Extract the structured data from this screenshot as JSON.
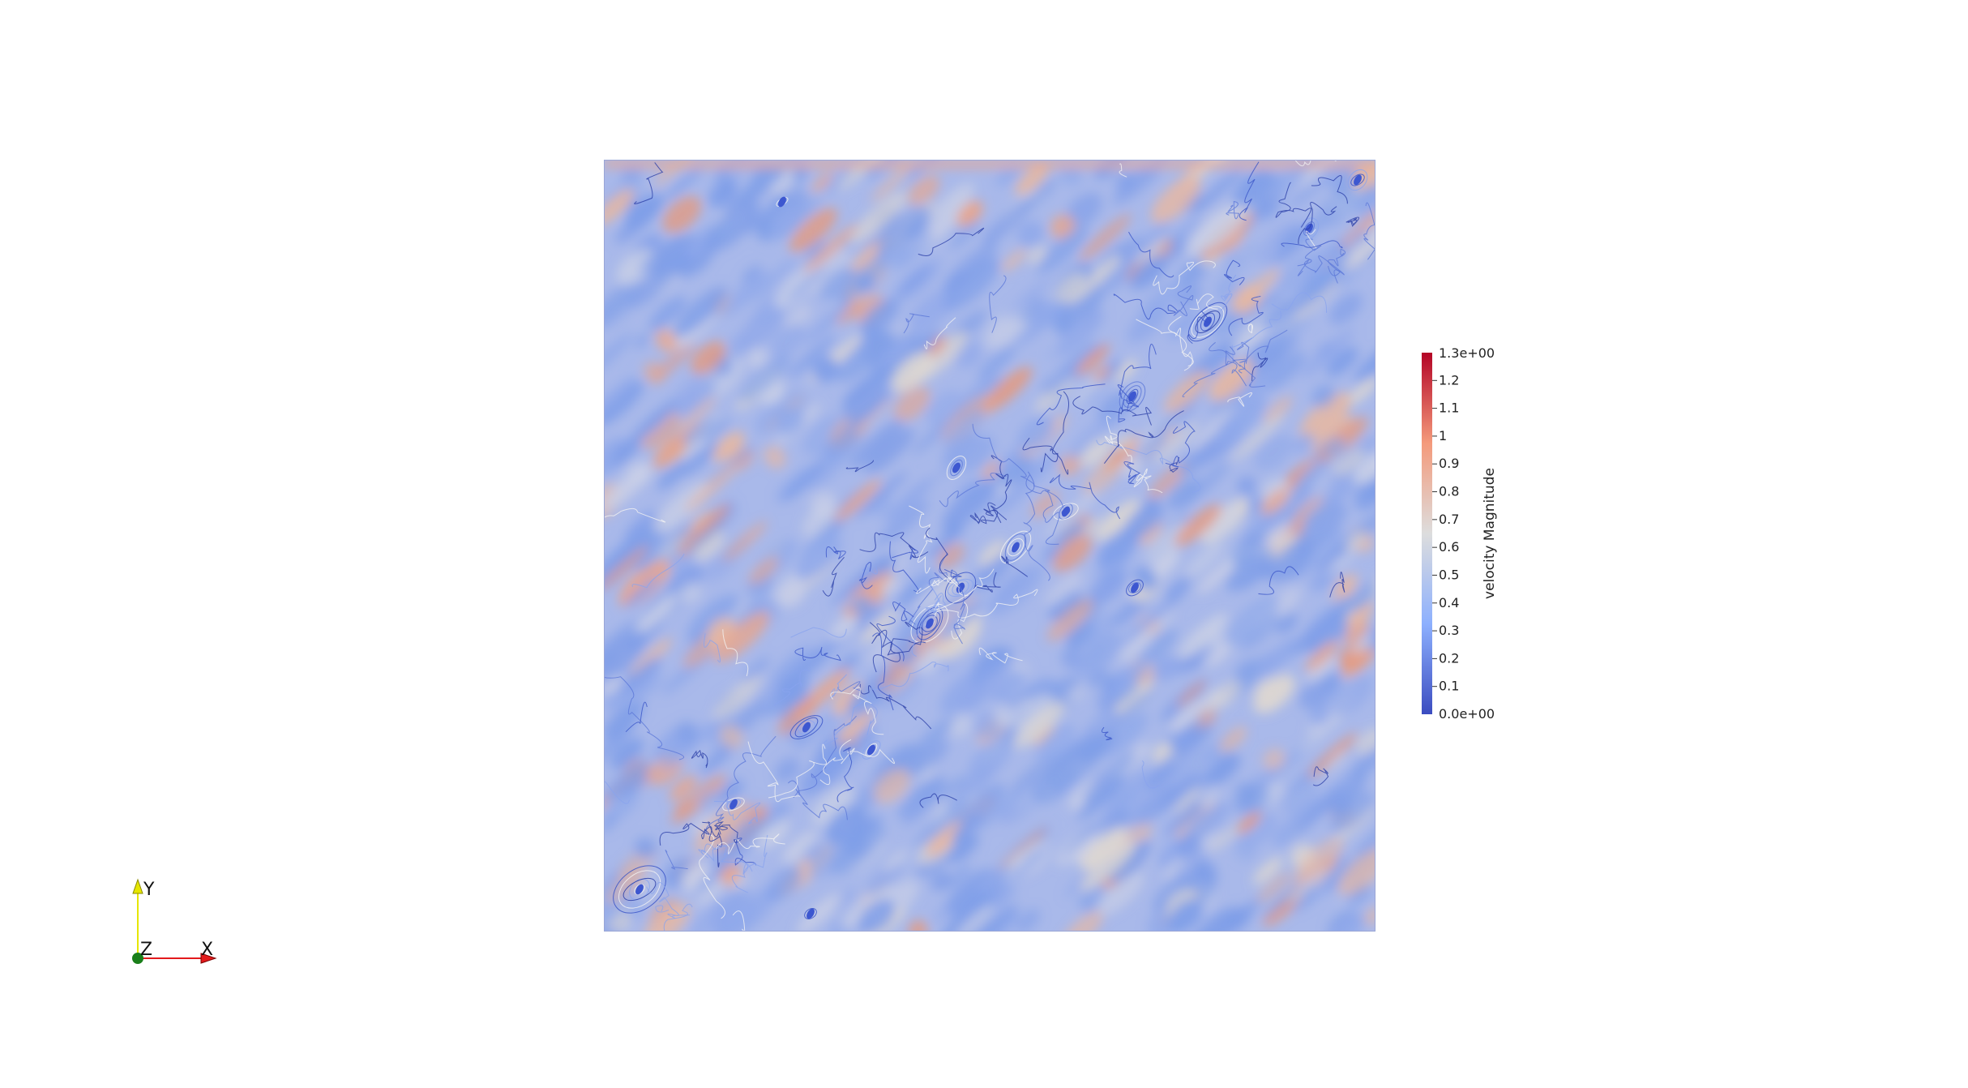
{
  "render_view": {
    "field": "velocity Magnitude",
    "colormap": "Cool to Warm",
    "colors": {
      "low": "#3b4cc0",
      "mid": "#dddddd",
      "high": "#b40426",
      "background": "#ffffff"
    }
  },
  "colorbar": {
    "title": "velocity Magnitude",
    "range": [
      0.0,
      1.3
    ],
    "max_label": "1.3e+00",
    "min_label": "0.0e+00",
    "ticks": [
      {
        "value": 1.2,
        "label": "1.2"
      },
      {
        "value": 1.1,
        "label": "1.1"
      },
      {
        "value": 1.0,
        "label": "1"
      },
      {
        "value": 0.9,
        "label": "0.9"
      },
      {
        "value": 0.8,
        "label": "0.8"
      },
      {
        "value": 0.7,
        "label": "0.7"
      },
      {
        "value": 0.6,
        "label": "0.6"
      },
      {
        "value": 0.5,
        "label": "0.5"
      },
      {
        "value": 0.4,
        "label": "0.4"
      },
      {
        "value": 0.3,
        "label": "0.3"
      },
      {
        "value": 0.2,
        "label": "0.2"
      },
      {
        "value": 0.1,
        "label": "0.1"
      }
    ]
  },
  "orientation_axes": {
    "x_label": "X",
    "y_label": "Y",
    "z_label": "Z",
    "x_color": "#e31a1c",
    "y_color": "#e6e600",
    "z_color": "#1a7f1a"
  }
}
